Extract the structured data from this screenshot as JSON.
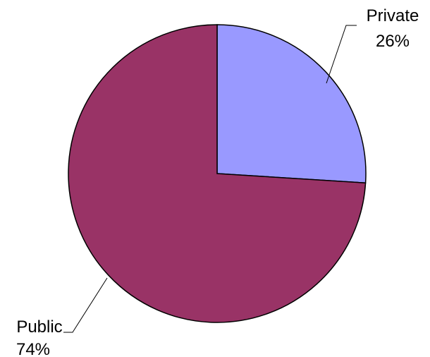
{
  "chart_data": {
    "type": "pie",
    "title": "",
    "start_angle_deg": 0,
    "direction": "clockwise",
    "slices": [
      {
        "label": "Private",
        "value": 26,
        "value_label": "26%",
        "color": "#9999ff"
      },
      {
        "label": "Public",
        "value": 74,
        "value_label": "74%",
        "color": "#993366"
      }
    ],
    "legend": "none",
    "outline_color": "#000000"
  }
}
